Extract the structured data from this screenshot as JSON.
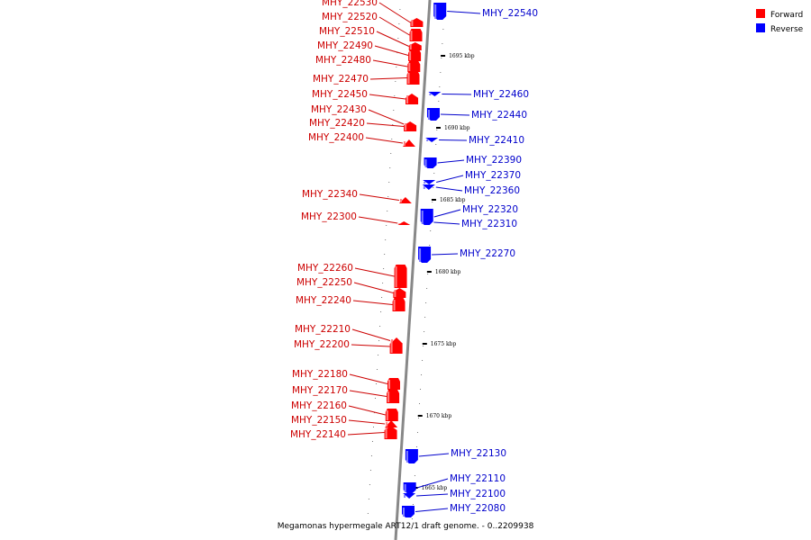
{
  "colors": {
    "forward": "#ff0000",
    "reverse": "#0000ff",
    "forward_label": "#cc0000",
    "reverse_label": "#0000cc",
    "axis": "#888888"
  },
  "legend": [
    {
      "label": "Forward",
      "color": "#ff0000"
    },
    {
      "label": "Reverse",
      "color": "#0000ff"
    }
  ],
  "caption": "Megamonas hypermegale ART12/1 draft genome. - 0..2209938",
  "ticks": [
    "1695 kbp",
    "1690 kbp",
    "1685 kbp",
    "1680 kbp",
    "1675 kbp",
    "1670 kbp",
    "1665 kbp"
  ],
  "forward_genes": [
    "MHY_22530",
    "MHY_22520",
    "MHY_22510",
    "MHY_22490",
    "MHY_22480",
    "MHY_22470",
    "MHY_22450",
    "MHY_22430",
    "MHY_22420",
    "MHY_22400",
    "MHY_22340",
    "MHY_22300",
    "MHY_22260",
    "MHY_22250",
    "MHY_22240",
    "MHY_22210",
    "MHY_22200",
    "MHY_22180",
    "MHY_22170",
    "MHY_22160",
    "MHY_22150",
    "MHY_22140"
  ],
  "reverse_genes": [
    "MHY_22540",
    "MHY_22460",
    "MHY_22440",
    "MHY_22410",
    "MHY_22390",
    "MHY_22370",
    "MHY_22360",
    "MHY_22320",
    "MHY_22310",
    "MHY_22270",
    "MHY_22130",
    "MHY_22110",
    "MHY_22100",
    "MHY_22080"
  ]
}
